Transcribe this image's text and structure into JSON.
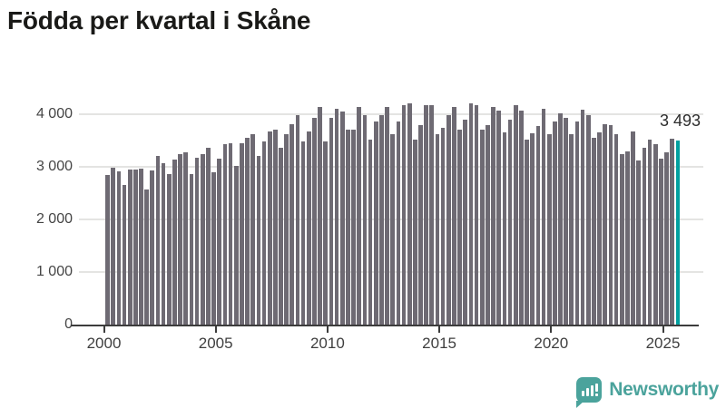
{
  "header": {
    "title": "Födda per kvartal i Skåne"
  },
  "annotation": {
    "last_value_label": "3 493"
  },
  "footer": {
    "brand": "Newsworthy",
    "logo_icon": "bar-chart-speech-bubble",
    "brand_color": "#4ba39c"
  },
  "chart_data": {
    "type": "bar",
    "title": "Födda per kvartal i Skåne",
    "xlabel": "",
    "ylabel": "",
    "ylim": [
      0,
      4400
    ],
    "grid": "horizontal",
    "legend": "none",
    "bar_color": "#6e6a73",
    "highlight_color": "#00a0a0",
    "highlight_index": 102,
    "highlight_value_label": "3 493",
    "y_ticks": [
      0,
      1000,
      2000,
      3000,
      4000
    ],
    "y_tick_labels": [
      "0",
      "1 000",
      "2 000",
      "3 000",
      "4 000"
    ],
    "x_tick_years": [
      2000,
      2005,
      2010,
      2015,
      2020,
      2025
    ],
    "x_tick_labels": [
      "2000",
      "2005",
      "2010",
      "2015",
      "2020",
      "2025"
    ],
    "x": [
      "2000 Q1",
      "2000 Q2",
      "2000 Q3",
      "2000 Q4",
      "2001 Q1",
      "2001 Q2",
      "2001 Q3",
      "2001 Q4",
      "2002 Q1",
      "2002 Q2",
      "2002 Q3",
      "2002 Q4",
      "2003 Q1",
      "2003 Q2",
      "2003 Q3",
      "2003 Q4",
      "2004 Q1",
      "2004 Q2",
      "2004 Q3",
      "2004 Q4",
      "2005 Q1",
      "2005 Q2",
      "2005 Q3",
      "2005 Q4",
      "2006 Q1",
      "2006 Q2",
      "2006 Q3",
      "2006 Q4",
      "2007 Q1",
      "2007 Q2",
      "2007 Q3",
      "2007 Q4",
      "2008 Q1",
      "2008 Q2",
      "2008 Q3",
      "2008 Q4",
      "2009 Q1",
      "2009 Q2",
      "2009 Q3",
      "2009 Q4",
      "2010 Q1",
      "2010 Q2",
      "2010 Q3",
      "2010 Q4",
      "2011 Q1",
      "2011 Q2",
      "2011 Q3",
      "2011 Q4",
      "2012 Q1",
      "2012 Q2",
      "2012 Q3",
      "2012 Q4",
      "2013 Q1",
      "2013 Q2",
      "2013 Q3",
      "2013 Q4",
      "2014 Q1",
      "2014 Q2",
      "2014 Q3",
      "2014 Q4",
      "2015 Q1",
      "2015 Q2",
      "2015 Q3",
      "2015 Q4",
      "2016 Q1",
      "2016 Q2",
      "2016 Q3",
      "2016 Q4",
      "2017 Q1",
      "2017 Q2",
      "2017 Q3",
      "2017 Q4",
      "2018 Q1",
      "2018 Q2",
      "2018 Q3",
      "2018 Q4",
      "2019 Q1",
      "2019 Q2",
      "2019 Q3",
      "2019 Q4",
      "2020 Q1",
      "2020 Q2",
      "2020 Q3",
      "2020 Q4",
      "2021 Q1",
      "2021 Q2",
      "2021 Q3",
      "2021 Q4",
      "2022 Q1",
      "2022 Q2",
      "2022 Q3",
      "2022 Q4",
      "2023 Q1",
      "2023 Q2",
      "2023 Q3",
      "2023 Q4",
      "2024 Q1",
      "2024 Q2",
      "2024 Q3",
      "2024 Q4",
      "2025 Q1",
      "2025 Q2",
      "2025 Q3"
    ],
    "values": [
      2840,
      2980,
      2910,
      2650,
      2940,
      2955,
      2970,
      2570,
      2925,
      3200,
      3065,
      2860,
      3130,
      3235,
      3270,
      2855,
      3170,
      3235,
      3370,
      2890,
      3150,
      3425,
      3440,
      3010,
      3440,
      3560,
      3615,
      3215,
      3475,
      3680,
      3700,
      3370,
      3615,
      3805,
      3975,
      3475,
      3680,
      3925,
      4145,
      3475,
      3925,
      4110,
      4060,
      3700,
      3715,
      4145,
      3975,
      3510,
      3870,
      3990,
      4145,
      3615,
      3855,
      4180,
      4215,
      3510,
      3785,
      4165,
      4180,
      3615,
      3750,
      3990,
      4130,
      3700,
      3905,
      4200,
      4180,
      3715,
      3785,
      4130,
      4075,
      3650,
      3905,
      4165,
      4075,
      3510,
      3630,
      3770,
      4110,
      3615,
      3855,
      4025,
      3925,
      3615,
      3870,
      4095,
      3990,
      3545,
      3650,
      3805,
      3785,
      3615,
      3234,
      3286,
      3665,
      3114,
      3355,
      3509,
      3424,
      3149,
      3269,
      3543,
      3493
    ]
  }
}
